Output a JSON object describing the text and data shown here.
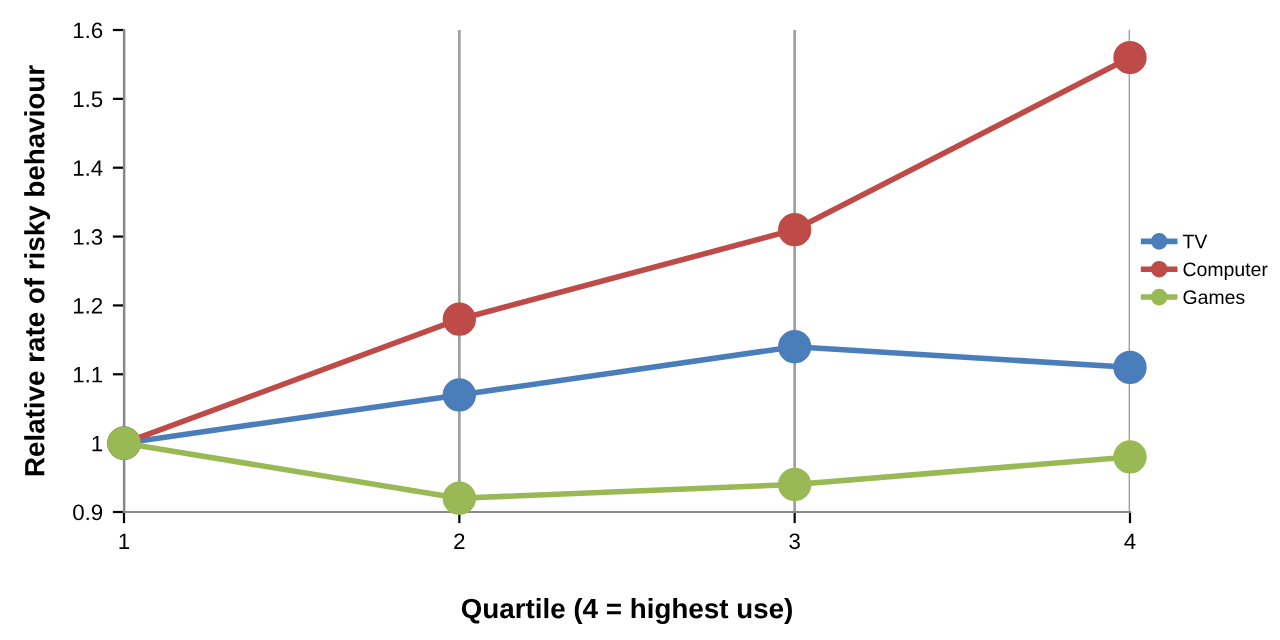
{
  "chart_data": {
    "type": "line",
    "xlabel": "Quartile (4 = highest use)",
    "ylabel": "Relative rate of risky behaviour",
    "x": [
      1,
      2,
      3,
      4
    ],
    "series": [
      {
        "name": "TV",
        "color": "#4a7ebb",
        "values": [
          1,
          1.07,
          1.14,
          1.11
        ]
      },
      {
        "name": "Computer",
        "color": "#be4b48",
        "values": [
          1,
          1.18,
          1.31,
          1.56
        ]
      },
      {
        "name": "Games",
        "color": "#98b954",
        "values": [
          1,
          0.92,
          0.94,
          0.98
        ]
      }
    ],
    "xlim": [
      1,
      4
    ],
    "xticks": [
      1,
      2,
      3,
      4
    ],
    "ylim": [
      0.9,
      1.6
    ],
    "yticks": [
      0.9,
      1,
      1.1,
      1.2,
      1.3,
      1.4,
      1.5,
      1.6
    ],
    "grid": "x",
    "legend": "right",
    "marker": "circle",
    "line_style": "solid"
  }
}
